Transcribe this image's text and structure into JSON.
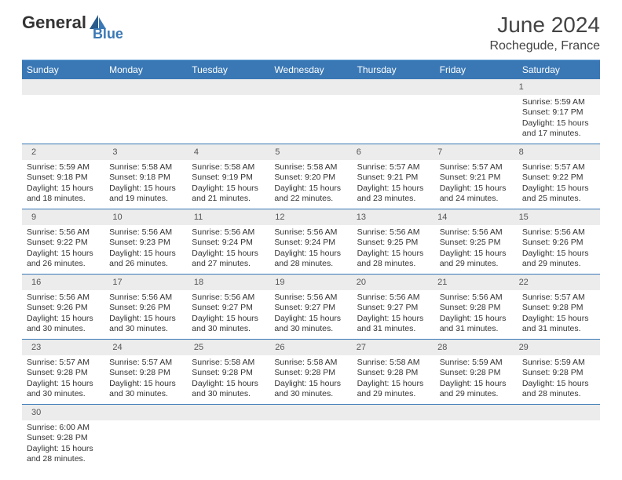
{
  "logo": {
    "text1": "General",
    "text2": "Blue"
  },
  "title": "June 2024",
  "location": "Rochegude, France",
  "colors": {
    "header_bg": "#3a78b5",
    "header_text": "#ffffff",
    "daynum_bg": "#ececec",
    "border": "#3a78b5",
    "text": "#333333"
  },
  "day_names": [
    "Sunday",
    "Monday",
    "Tuesday",
    "Wednesday",
    "Thursday",
    "Friday",
    "Saturday"
  ],
  "weeks": [
    {
      "nums": [
        "",
        "",
        "",
        "",
        "",
        "",
        "1"
      ],
      "cells": [
        null,
        null,
        null,
        null,
        null,
        null,
        {
          "rise": "5:59 AM",
          "set": "9:17 PM",
          "dayh": "15",
          "daym": "17"
        }
      ]
    },
    {
      "nums": [
        "2",
        "3",
        "4",
        "5",
        "6",
        "7",
        "8"
      ],
      "cells": [
        {
          "rise": "5:59 AM",
          "set": "9:18 PM",
          "dayh": "15",
          "daym": "18"
        },
        {
          "rise": "5:58 AM",
          "set": "9:18 PM",
          "dayh": "15",
          "daym": "19"
        },
        {
          "rise": "5:58 AM",
          "set": "9:19 PM",
          "dayh": "15",
          "daym": "21"
        },
        {
          "rise": "5:58 AM",
          "set": "9:20 PM",
          "dayh": "15",
          "daym": "22"
        },
        {
          "rise": "5:57 AM",
          "set": "9:21 PM",
          "dayh": "15",
          "daym": "23"
        },
        {
          "rise": "5:57 AM",
          "set": "9:21 PM",
          "dayh": "15",
          "daym": "24"
        },
        {
          "rise": "5:57 AM",
          "set": "9:22 PM",
          "dayh": "15",
          "daym": "25"
        }
      ]
    },
    {
      "nums": [
        "9",
        "10",
        "11",
        "12",
        "13",
        "14",
        "15"
      ],
      "cells": [
        {
          "rise": "5:56 AM",
          "set": "9:22 PM",
          "dayh": "15",
          "daym": "26"
        },
        {
          "rise": "5:56 AM",
          "set": "9:23 PM",
          "dayh": "15",
          "daym": "26"
        },
        {
          "rise": "5:56 AM",
          "set": "9:24 PM",
          "dayh": "15",
          "daym": "27"
        },
        {
          "rise": "5:56 AM",
          "set": "9:24 PM",
          "dayh": "15",
          "daym": "28"
        },
        {
          "rise": "5:56 AM",
          "set": "9:25 PM",
          "dayh": "15",
          "daym": "28"
        },
        {
          "rise": "5:56 AM",
          "set": "9:25 PM",
          "dayh": "15",
          "daym": "29"
        },
        {
          "rise": "5:56 AM",
          "set": "9:26 PM",
          "dayh": "15",
          "daym": "29"
        }
      ]
    },
    {
      "nums": [
        "16",
        "17",
        "18",
        "19",
        "20",
        "21",
        "22"
      ],
      "cells": [
        {
          "rise": "5:56 AM",
          "set": "9:26 PM",
          "dayh": "15",
          "daym": "30"
        },
        {
          "rise": "5:56 AM",
          "set": "9:26 PM",
          "dayh": "15",
          "daym": "30"
        },
        {
          "rise": "5:56 AM",
          "set": "9:27 PM",
          "dayh": "15",
          "daym": "30"
        },
        {
          "rise": "5:56 AM",
          "set": "9:27 PM",
          "dayh": "15",
          "daym": "30"
        },
        {
          "rise": "5:56 AM",
          "set": "9:27 PM",
          "dayh": "15",
          "daym": "31"
        },
        {
          "rise": "5:56 AM",
          "set": "9:28 PM",
          "dayh": "15",
          "daym": "31"
        },
        {
          "rise": "5:57 AM",
          "set": "9:28 PM",
          "dayh": "15",
          "daym": "31"
        }
      ]
    },
    {
      "nums": [
        "23",
        "24",
        "25",
        "26",
        "27",
        "28",
        "29"
      ],
      "cells": [
        {
          "rise": "5:57 AM",
          "set": "9:28 PM",
          "dayh": "15",
          "daym": "30"
        },
        {
          "rise": "5:57 AM",
          "set": "9:28 PM",
          "dayh": "15",
          "daym": "30"
        },
        {
          "rise": "5:58 AM",
          "set": "9:28 PM",
          "dayh": "15",
          "daym": "30"
        },
        {
          "rise": "5:58 AM",
          "set": "9:28 PM",
          "dayh": "15",
          "daym": "30"
        },
        {
          "rise": "5:58 AM",
          "set": "9:28 PM",
          "dayh": "15",
          "daym": "29"
        },
        {
          "rise": "5:59 AM",
          "set": "9:28 PM",
          "dayh": "15",
          "daym": "29"
        },
        {
          "rise": "5:59 AM",
          "set": "9:28 PM",
          "dayh": "15",
          "daym": "28"
        }
      ]
    },
    {
      "nums": [
        "30",
        "",
        "",
        "",
        "",
        "",
        ""
      ],
      "cells": [
        {
          "rise": "6:00 AM",
          "set": "9:28 PM",
          "dayh": "15",
          "daym": "28"
        },
        null,
        null,
        null,
        null,
        null,
        null
      ]
    }
  ],
  "labels": {
    "sunrise": "Sunrise: ",
    "sunset": "Sunset: ",
    "daylight1": "Daylight: ",
    "daylight2": " hours",
    "daylight3": "and ",
    "daylight4": " minutes."
  }
}
